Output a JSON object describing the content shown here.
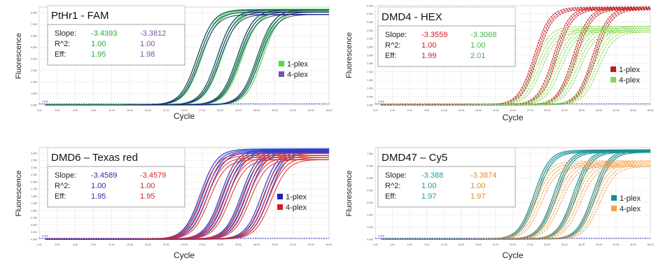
{
  "colors": {
    "grid": "#e4e4e4",
    "axis": "#c8c8c8",
    "baseline": "#2b3fbf",
    "box_border": "#9a9a9a",
    "title_box_border": "#bdbdbd"
  },
  "chart_data": [
    {
      "type": "line",
      "title": "PtHr1 - FAM",
      "xlabel": "Cycle",
      "ylabel": "Fluorescence",
      "xlim": [
        0,
        48
      ],
      "ylim": [
        0,
        8500
      ],
      "x_ticks": [
        "0.00",
        "3.00",
        "6.00",
        "9.00",
        "12.00",
        "15.00",
        "18.00",
        "21.00",
        "24.00",
        "27.00",
        "30.00",
        "33.00",
        "36.00",
        "39.00",
        "42.00",
        "45.00",
        "48.00"
      ],
      "y_ticks": [
        "0.000",
        "1.000",
        "2.000",
        "3.000",
        "4.000",
        "5.000",
        "6.000",
        "7.000",
        "8.000"
      ],
      "threshold_label": "0.000",
      "legend_position": "right",
      "stats": {
        "row_labels": [
          "Slope:",
          "R^2:",
          "Eff:"
        ],
        "columns": [
          {
            "color": "#2aa837",
            "values": [
              "-3.4393",
              "1.00",
              "1.95"
            ]
          },
          {
            "color": "#7a55a6",
            "values": [
              "-3.3812",
              "1.00",
              "1.98"
            ]
          }
        ]
      },
      "series": [
        {
          "name": "1-plex",
          "color": "#45e04a",
          "curve_color": "#45e04a",
          "plateau": 8300,
          "ct_values": [
            26.5,
            29.8,
            33.2,
            36.6
          ],
          "replicates": 3,
          "spread": 0.35
        },
        {
          "name": "4-plex",
          "color": "#7652a8",
          "curve_color": "#1e2a78",
          "plateau": 8250,
          "ct_values": [
            26.4,
            29.7,
            33.0,
            36.3
          ],
          "replicates": 3,
          "spread": 0.25
        }
      ]
    },
    {
      "type": "line",
      "title": "DMD4 - HEX",
      "xlabel": "Cycle",
      "ylabel": "Fluorescence",
      "xlim": [
        0,
        48
      ],
      "ylim": [
        0,
        6000
      ],
      "x_ticks": [
        "0.00",
        "3.00",
        "6.00",
        "9.00",
        "12.00",
        "15.00",
        "18.00",
        "21.00",
        "24.00",
        "27.00",
        "30.00",
        "33.00",
        "36.00",
        "39.00",
        "42.00",
        "45.00",
        "48.00"
      ],
      "y_ticks": [
        "0.000",
        "0.500",
        "1.000",
        "1.500",
        "2.000",
        "2.500",
        "3.000",
        "3.500",
        "4.000",
        "4.500",
        "5.000",
        "5.500",
        "6.000"
      ],
      "threshold_label": "0.000",
      "legend_position": "right",
      "stats": {
        "row_labels": [
          "Slope:",
          "R^2:",
          "Eff:"
        ],
        "columns": [
          {
            "color": "#d0162a",
            "values": [
              "-3.3559",
              "1.00",
              "1.99"
            ]
          },
          {
            "color": "#3fb43f",
            "values": [
              "-3.3068",
              "1.00",
              "2.01"
            ]
          }
        ]
      },
      "series": [
        {
          "name": "1-plex",
          "color": "#c8161e",
          "curve_color": "#c8161e",
          "plateau": 5900,
          "ct_values": [
            28.0,
            31.4,
            34.8,
            38.2
          ],
          "replicates": 3,
          "spread": 0.3
        },
        {
          "name": "4-plex",
          "color": "#86d94e",
          "curve_color": "#86d94e",
          "plateau": 4750,
          "ct_values": [
            28.4,
            31.7,
            35.0,
            38.3
          ],
          "replicates": 4,
          "spread": 0.45
        }
      ]
    },
    {
      "type": "line",
      "title": "DMD6 – Texas red",
      "xlabel": "Cycle",
      "ylabel": "Fluorescence",
      "xlim": [
        0,
        48
      ],
      "ylim": [
        0,
        3200
      ],
      "x_ticks": [
        "0.00",
        "3.00",
        "6.00",
        "9.00",
        "12.00",
        "15.00",
        "18.00",
        "21.00",
        "24.00",
        "27.00",
        "30.00",
        "33.00",
        "36.00",
        "39.00",
        "42.00",
        "45.00",
        "48.00"
      ],
      "y_ticks": [
        "0.000",
        "0.250",
        "0.500",
        "0.750",
        "1.000",
        "1.250",
        "1.500",
        "1.750",
        "2.000",
        "2.250",
        "2.500",
        "2.750",
        "3.000"
      ],
      "threshold_label": "0.000",
      "legend_position": "right",
      "stats": {
        "row_labels": [
          "Slope:",
          "R^2:",
          "Eff:"
        ],
        "columns": [
          {
            "color": "#2a2aa8",
            "values": [
              "-3.4589",
              "1.00",
              "1.95"
            ]
          },
          {
            "color": "#e02020",
            "values": [
              "-3.4579",
              "1.00",
              "1.95"
            ]
          }
        ]
      },
      "series": [
        {
          "name": "1-plex",
          "color": "#1f1fb4",
          "curve_color": "#2a3fd0",
          "plateau": 3150,
          "ct_values": [
            27.3,
            30.7,
            34.1,
            37.5
          ],
          "replicates": 4,
          "spread": 0.4
        },
        {
          "name": "4-plex",
          "color": "#e01a1a",
          "curve_color": "#e02828",
          "plateau": 3000,
          "ct_values": [
            27.5,
            30.9,
            34.3,
            37.8
          ],
          "replicates": 4,
          "spread": 0.45
        }
      ]
    },
    {
      "type": "line",
      "title": "DMD47 – Cy5",
      "xlabel": "Cycle",
      "ylabel": "Fluorescence",
      "xlim": [
        0,
        48
      ],
      "ylim": [
        0,
        7500
      ],
      "x_ticks": [
        "0.00",
        "3.00",
        "6.00",
        "9.00",
        "12.00",
        "15.00",
        "18.00",
        "21.00",
        "24.00",
        "27.00",
        "30.00",
        "33.00",
        "36.00",
        "39.00",
        "42.00",
        "45.00",
        "48.00"
      ],
      "y_ticks": [
        "0.000",
        "1.000",
        "2.000",
        "3.000",
        "4.000",
        "5.000",
        "6.000",
        "7.000"
      ],
      "threshold_label": "0.000",
      "legend_position": "right",
      "stats": {
        "row_labels": [
          "Slope:",
          "R^2:",
          "Eff:"
        ],
        "columns": [
          {
            "color": "#1f9a9a",
            "values": [
              "-3.388",
              "1.00",
              "1.97"
            ]
          },
          {
            "color": "#e08a20",
            "values": [
              "-3.3874",
              "1.00",
              "1.97"
            ]
          }
        ]
      },
      "series": [
        {
          "name": "1-plex",
          "color": "#178c8c",
          "curve_color": "#1a9090",
          "plateau": 7300,
          "ct_values": [
            28.0,
            31.4,
            34.8,
            38.2
          ],
          "replicates": 3,
          "spread": 0.3
        },
        {
          "name": "4-plex",
          "color": "#f5a04a",
          "curve_color": "#f5a04a",
          "plateau": 6400,
          "ct_values": [
            28.3,
            31.7,
            35.1,
            38.5
          ],
          "replicates": 4,
          "spread": 0.45
        }
      ]
    }
  ]
}
